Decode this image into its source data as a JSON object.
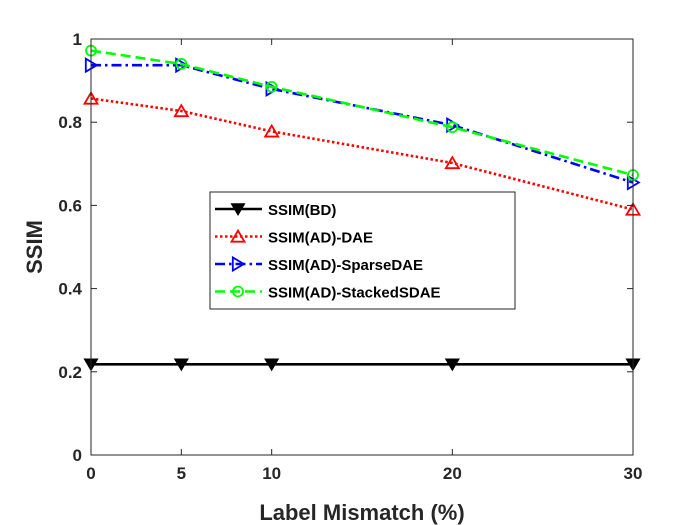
{
  "chart_data": {
    "type": "line",
    "title": "",
    "xlabel": "Label Mismatch (%)",
    "ylabel": "SSIM",
    "x": [
      0,
      5,
      10,
      20,
      30
    ],
    "xlim": [
      0,
      30
    ],
    "ylim": [
      0,
      1
    ],
    "x_ticks": [
      0,
      5,
      10,
      20,
      30
    ],
    "x_tick_labels": [
      "0",
      "5",
      "10",
      "20",
      "30"
    ],
    "y_ticks": [
      0,
      0.2,
      0.4,
      0.6,
      0.8,
      1
    ],
    "y_tick_labels": [
      "0",
      "0.2",
      "0.4",
      "0.6",
      "0.8",
      "1"
    ],
    "grid": false,
    "legend_position": "center",
    "series": [
      {
        "name": "SSIM(BD)",
        "values": [
          0.218,
          0.218,
          0.218,
          0.218,
          0.218
        ],
        "color": "#000000",
        "line_style": "solid",
        "marker": "triangle-down"
      },
      {
        "name": "SSIM(AD)-DAE",
        "values": [
          0.857,
          0.827,
          0.778,
          0.702,
          0.59
        ],
        "color": "#ff0000",
        "line_style": "dotted",
        "marker": "triangle-up"
      },
      {
        "name": "SSIM(AD)-SparseDAE",
        "values": [
          0.937,
          0.937,
          0.88,
          0.793,
          0.655
        ],
        "color": "#0000ff",
        "line_style": "dashdot",
        "marker": "triangle-right"
      },
      {
        "name": "SSIM(AD)-StackedSDAE",
        "values": [
          0.972,
          0.94,
          0.885,
          0.788,
          0.673
        ],
        "color": "#00ff00",
        "line_style": "dashed",
        "marker": "circle"
      }
    ]
  }
}
